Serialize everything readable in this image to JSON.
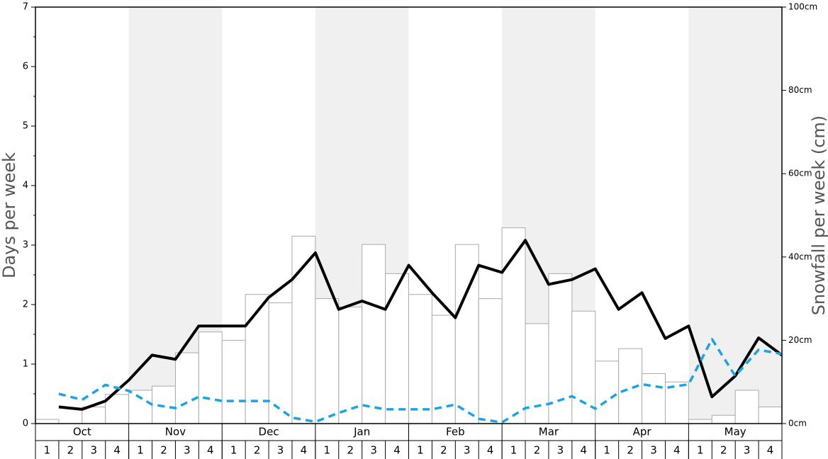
{
  "chart_data": {
    "type": "combo",
    "y_label": "Days per week",
    "y2_label": "Snowfall per week (cm)",
    "months": [
      "Oct",
      "Nov",
      "Dec",
      "Jan",
      "Feb",
      "Mar",
      "Apr",
      "May"
    ],
    "weeks": [
      "1",
      "2",
      "3",
      "4"
    ],
    "ylim": [
      0,
      7
    ],
    "yticks": [
      0,
      1,
      2,
      3,
      4,
      5,
      6,
      7
    ],
    "y2lim": [
      0,
      100
    ],
    "y2ticks": [
      {
        "value": 0,
        "label": "0cm"
      },
      {
        "value": 20,
        "label": "20cm"
      },
      {
        "value": 40,
        "label": "40cm"
      },
      {
        "value": 60,
        "label": "60cm"
      },
      {
        "value": 80,
        "label": "80cm"
      },
      {
        "value": 100,
        "label": "100cm"
      }
    ],
    "series": [
      {
        "type": "bar",
        "axis": "y2",
        "color": "#ffffff",
        "edge": "#aaaaaa",
        "values": [
          1,
          0,
          4,
          7,
          8,
          9,
          17,
          22,
          20,
          31,
          29,
          45,
          30,
          28,
          43,
          36,
          31,
          26,
          43,
          30,
          47,
          24,
          36,
          27,
          15,
          18,
          12,
          10,
          1,
          2,
          8,
          4
        ]
      },
      {
        "type": "line",
        "color": "#000000",
        "dashed": false,
        "values": [
          0.28,
          0.24,
          0.38,
          0.73,
          1.15,
          1.08,
          1.64,
          1.64,
          1.64,
          2.12,
          2.42,
          2.87,
          1.92,
          2.06,
          1.92,
          2.66,
          2.2,
          1.78,
          2.66,
          2.54,
          3.08,
          2.34,
          2.42,
          2.6,
          1.92,
          2.2,
          1.43,
          1.64,
          0.45,
          0.8,
          1.44,
          1.15
        ]
      },
      {
        "type": "line",
        "color": "#1aa3e8",
        "dashed": true,
        "values": [
          0.5,
          0.4,
          0.65,
          0.55,
          0.32,
          0.26,
          0.45,
          0.38,
          0.38,
          0.38,
          0.1,
          0.03,
          0.18,
          0.31,
          0.24,
          0.24,
          0.24,
          0.32,
          0.08,
          0.02,
          0.26,
          0.33,
          0.46,
          0.25,
          0.52,
          0.66,
          0.6,
          0.66,
          1.42,
          0.8,
          1.24,
          1.17
        ]
      }
    ]
  }
}
